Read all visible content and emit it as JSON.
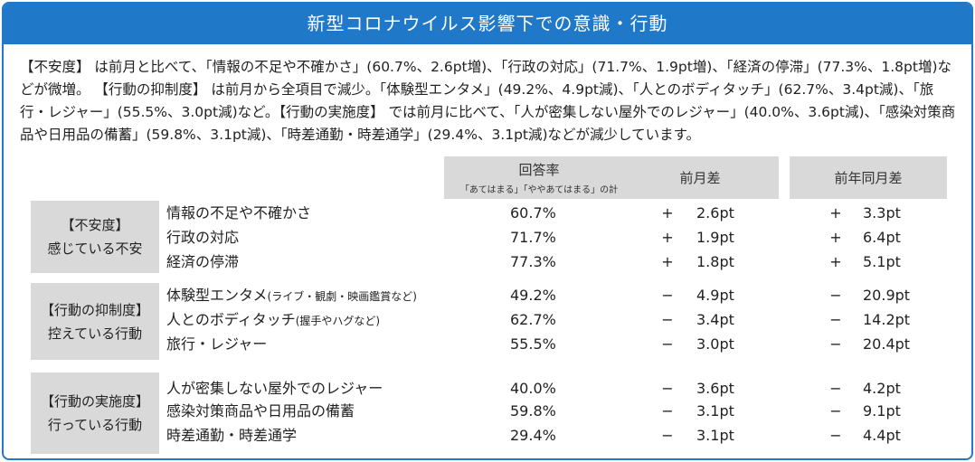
{
  "title": "新型コロナウイルス影響下での意識・行動",
  "summary": "【不安度】 は前月と比べて、「情報の不足や不確かさ」(60.7%、2.6pt増)、「行政の対応」(71.7%、1.9pt増)、「経済の停滞」(77.3%、1.8pt増)などが微増。 【行動の抑制度】 は前月から全項目で減少。「体験型エンタメ」(49.2%、4.9pt減)、「人とのボディタッチ」(62.7%、3.4pt減)、「旅行・レジャー」(55.5%、3.0pt減)など。【行動の実施度】 では前月に比べて、「人が密集しない屋外でのレジャー」(40.0%、3.6pt減)、「感染対策商品や日用品の備蓄」(59.8%、3.1pt減)、「時差通勤・時差通学」(29.4%、3.1pt減)などが減少しています。",
  "columns": {
    "rate": {
      "label": "回答率",
      "sub": "「あてはまる」「ややあてはまる」の計"
    },
    "mom": {
      "label": "前月差"
    },
    "yoy": {
      "label": "前年同月差"
    }
  },
  "groups": [
    {
      "title": "【不安度】",
      "subtitle": "感じている不安",
      "rows": [
        {
          "item": "情報の不足や不確かさ",
          "note": "",
          "rate": "60.7%",
          "mom_sign": "+",
          "mom": "2.6pt",
          "yoy_sign": "+",
          "yoy": "3.3pt"
        },
        {
          "item": "行政の対応",
          "note": "",
          "rate": "71.7%",
          "mom_sign": "+",
          "mom": "1.9pt",
          "yoy_sign": "+",
          "yoy": "6.4pt"
        },
        {
          "item": "経済の停滞",
          "note": "",
          "rate": "77.3%",
          "mom_sign": "+",
          "mom": "1.8pt",
          "yoy_sign": "+",
          "yoy": "5.1pt"
        }
      ]
    },
    {
      "title": "【行動の抑制度】",
      "subtitle": "控えている行動",
      "rows": [
        {
          "item": "体験型エンタメ",
          "note": "(ライブ・観劇・映画鑑賞など)",
          "rate": "49.2%",
          "mom_sign": "−",
          "mom": "4.9pt",
          "yoy_sign": "−",
          "yoy": "20.9pt"
        },
        {
          "item": "人とのボディタッチ",
          "note": "(握手やハグなど)",
          "rate": "62.7%",
          "mom_sign": "−",
          "mom": "3.4pt",
          "yoy_sign": "−",
          "yoy": "14.2pt"
        },
        {
          "item": "旅行・レジャー",
          "note": "",
          "rate": "55.5%",
          "mom_sign": "−",
          "mom": "3.0pt",
          "yoy_sign": "−",
          "yoy": "20.4pt"
        }
      ]
    },
    {
      "title": "【行動の実施度】",
      "subtitle": "行っている行動",
      "rows": [
        {
          "item": "人が密集しない屋外でのレジャー",
          "note": "",
          "rate": "40.0%",
          "mom_sign": "−",
          "mom": "3.6pt",
          "yoy_sign": "−",
          "yoy": "4.2pt"
        },
        {
          "item": "感染対策商品や日用品の備蓄",
          "note": "",
          "rate": "59.8%",
          "mom_sign": "−",
          "mom": "3.1pt",
          "yoy_sign": "−",
          "yoy": "9.1pt"
        },
        {
          "item": "時差通勤・時差通学",
          "note": "",
          "rate": "29.4%",
          "mom_sign": "−",
          "mom": "3.1pt",
          "yoy_sign": "−",
          "yoy": "4.4pt"
        }
      ]
    }
  ]
}
